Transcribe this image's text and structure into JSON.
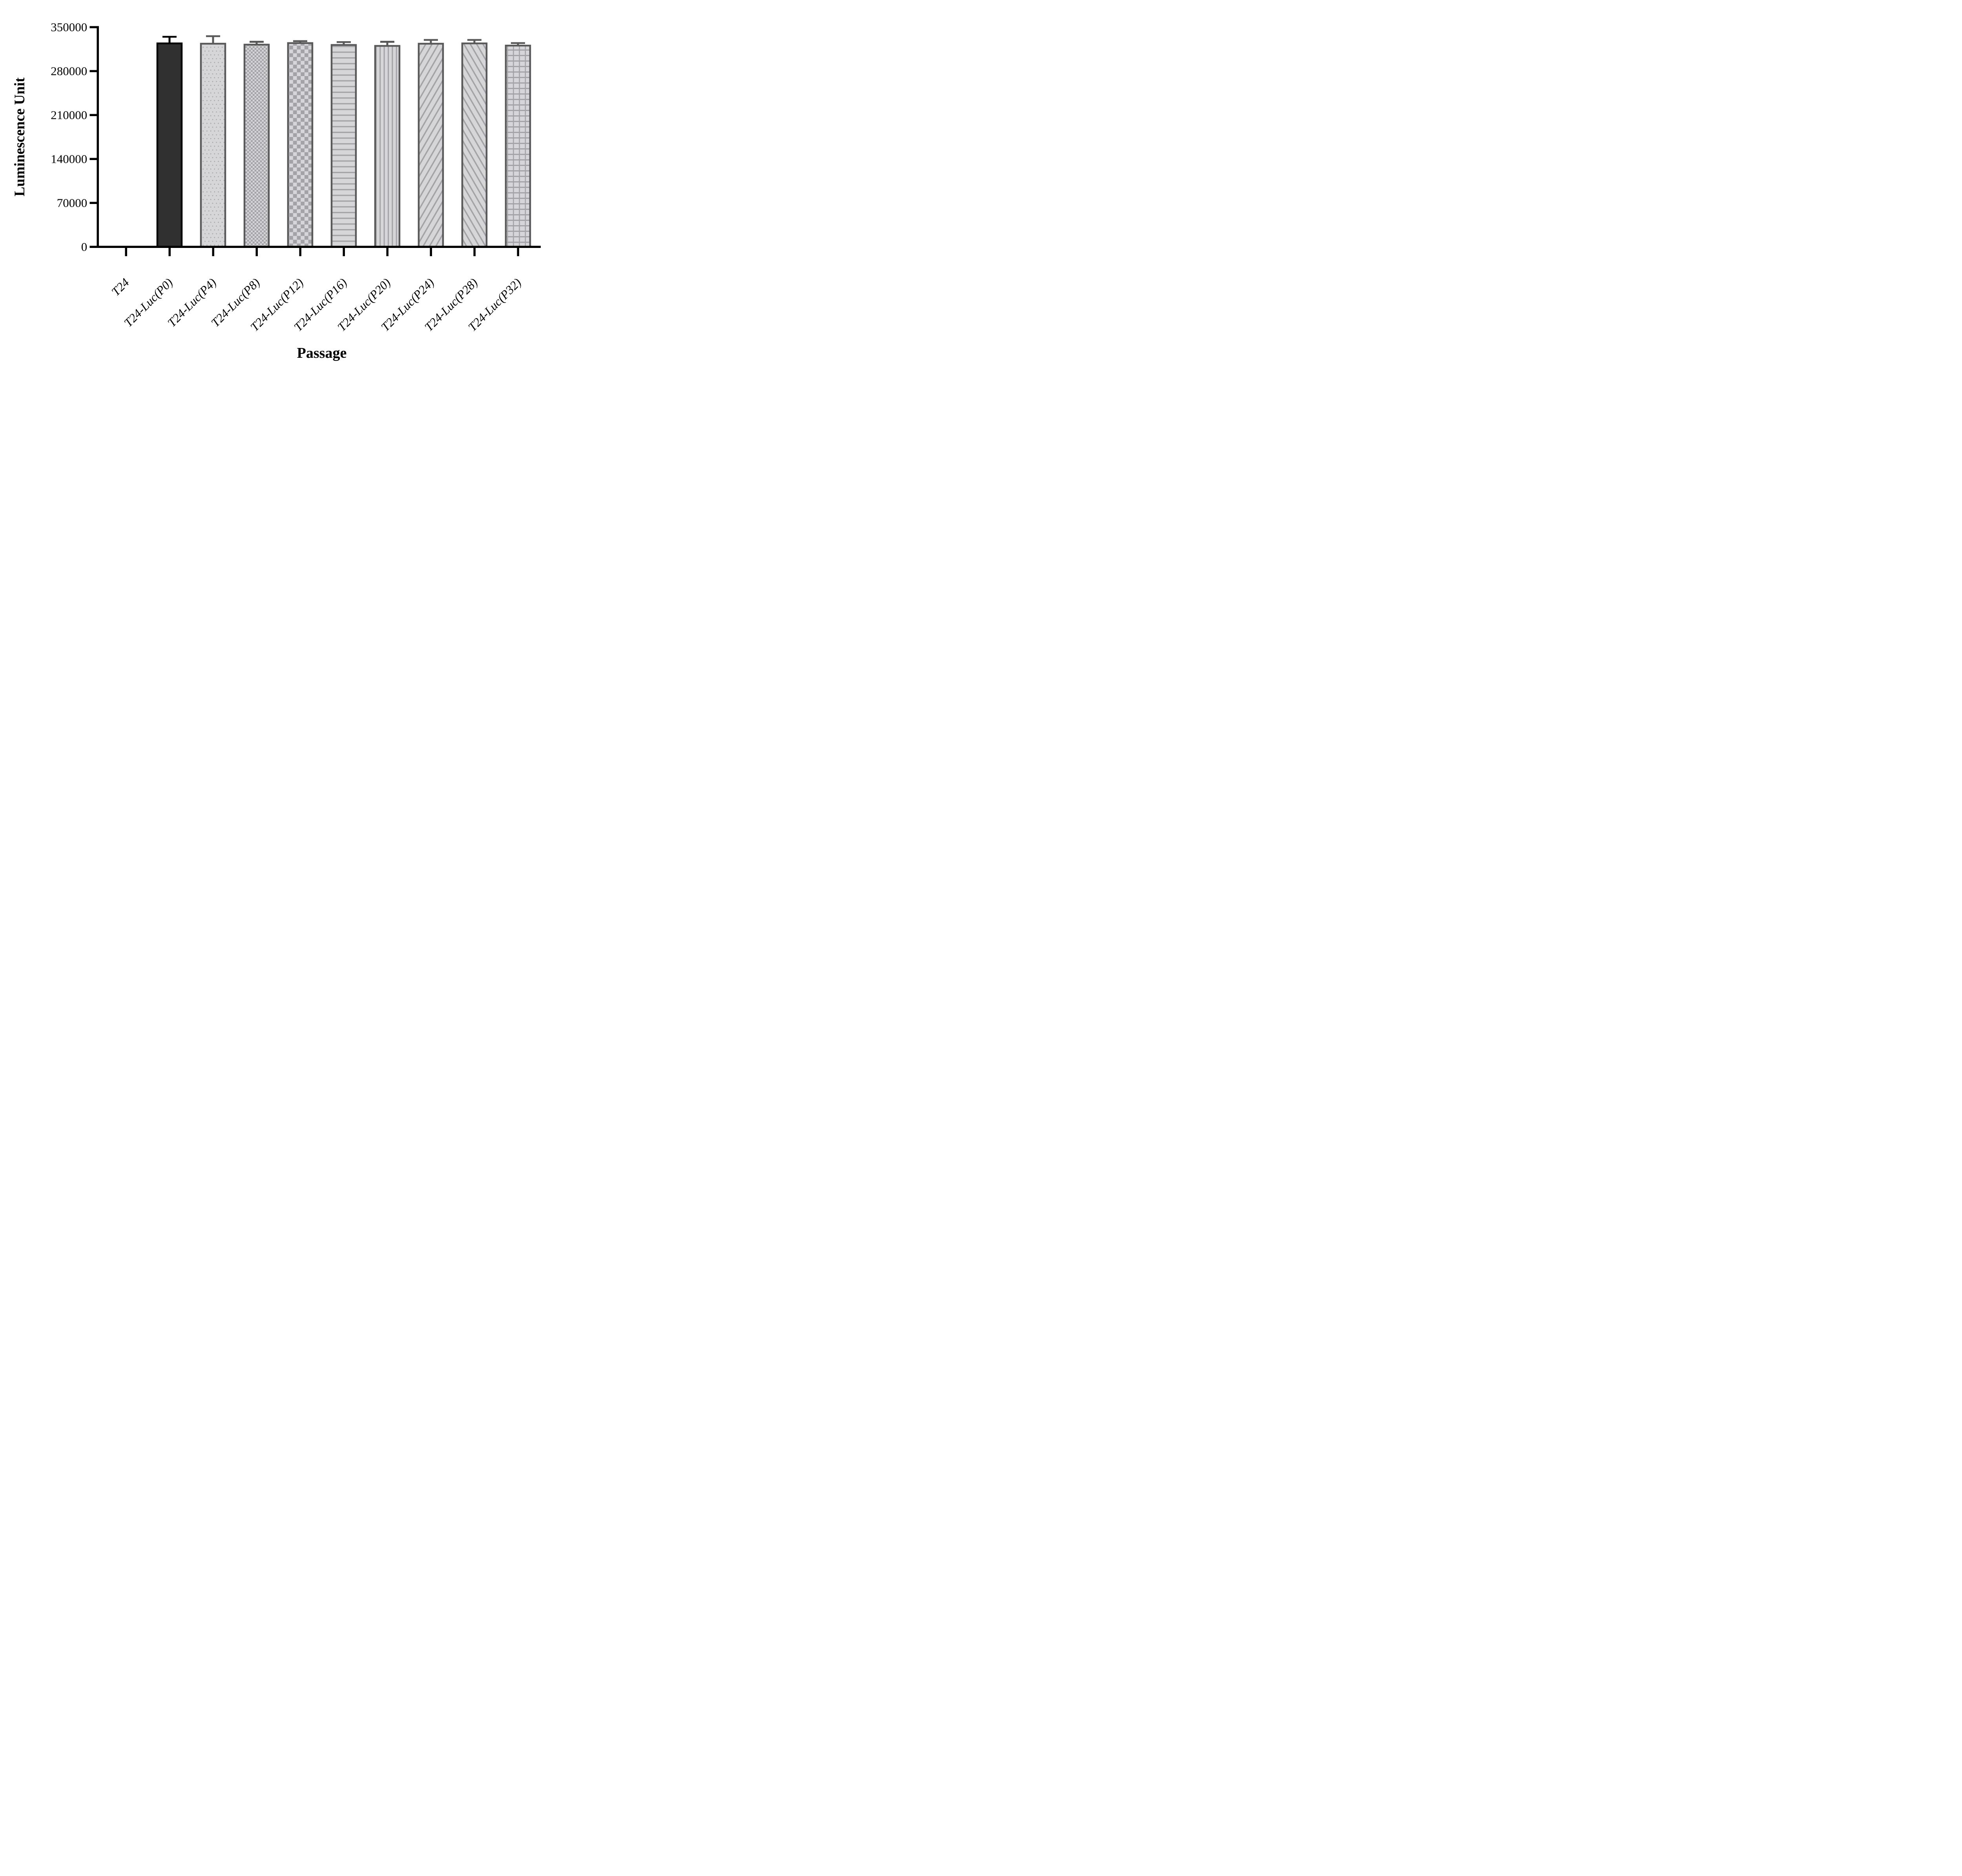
{
  "chart_data": {
    "type": "bar",
    "title": "",
    "xlabel": "Passage",
    "ylabel": "Luminescence Unit",
    "categories": [
      "T24",
      "T24-Luc(P0)",
      "T24-Luc(P4)",
      "T24-Luc(P8)",
      "T24-Luc(P12)",
      "T24-Luc(P16)",
      "T24-Luc(P20)",
      "T24-Luc(P24)",
      "T24-Luc(P28)",
      "T24-Luc(P32)"
    ],
    "values": [
      0,
      324000,
      323500,
      322000,
      324500,
      321500,
      320000,
      323500,
      324000,
      320500
    ],
    "errors_upper": [
      0,
      12000,
      13500,
      6000,
      4500,
      6000,
      8000,
      7500,
      7000,
      5500
    ],
    "error_bar_style": "upper-cap",
    "patterns": [
      "none",
      "solid",
      "dots",
      "checker-fine",
      "checker-coarse",
      "horizontal-lines",
      "vertical-lines",
      "diagonal-up",
      "diagonal-down",
      "grid"
    ],
    "yticks": [
      0,
      70000,
      140000,
      210000,
      280000,
      350000
    ],
    "ylim": [
      0,
      350000
    ],
    "grid": false,
    "legend": null,
    "colors": {
      "background": "#ffffff",
      "axis_color": "#000000",
      "text_color": "#000000",
      "bar_border": "#595959",
      "error_color": "#595959",
      "pattern_fg": "#a3a3a7",
      "pattern_bg": "#d6d6d8",
      "solid_bar_fill": "#303030",
      "solid_bar_border": "#000000",
      "solid_error": "#000000"
    }
  }
}
